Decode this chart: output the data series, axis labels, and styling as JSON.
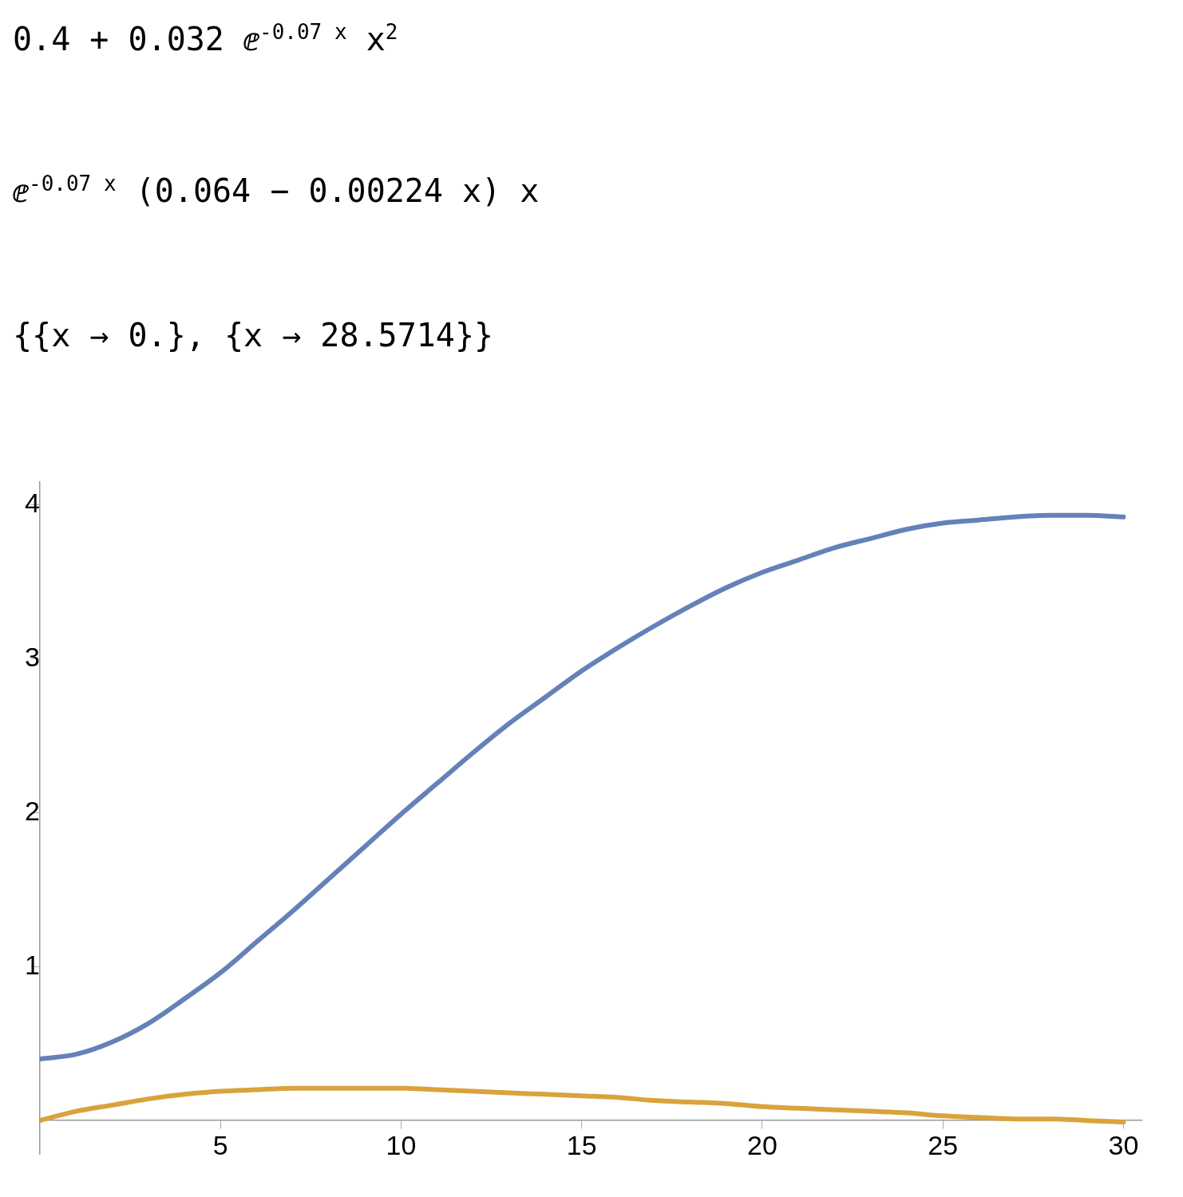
{
  "chart_data": {
    "type": "line",
    "annotations": [
      "0.4 + 0.032 ⅇ$^{-0.07 x}$ x$^{2}$",
      "ⅇ$^{-0.07 x}$ (0.064 − 0.00224 x) x",
      "{{x → 0.}, {x → 28.5714}}"
    ],
    "x": [
      0,
      1,
      2,
      3,
      4,
      5,
      6,
      7,
      8,
      9,
      10,
      11,
      12,
      13,
      14,
      15,
      16,
      17,
      18,
      19,
      20,
      21,
      22,
      23,
      24,
      25,
      26,
      27,
      28,
      29,
      30
    ],
    "series": [
      {
        "color": "#6482b8",
        "values": [
          0.4,
          0.43,
          0.51,
          0.63,
          0.79,
          0.96,
          1.16,
          1.36,
          1.57,
          1.78,
          1.99,
          2.19,
          2.39,
          2.58,
          2.75,
          2.92,
          3.07,
          3.21,
          3.34,
          3.46,
          3.56,
          3.64,
          3.72,
          3.78,
          3.84,
          3.88,
          3.9,
          3.92,
          3.93,
          3.93,
          3.92
        ]
      },
      {
        "color": "#d9a33c",
        "values": [
          0,
          0.06,
          0.1,
          0.14,
          0.17,
          0.19,
          0.2,
          0.21,
          0.21,
          0.21,
          0.21,
          0.2,
          0.19,
          0.18,
          0.17,
          0.16,
          0.15,
          0.13,
          0.12,
          0.11,
          0.09,
          0.08,
          0.07,
          0.06,
          0.05,
          0.03,
          0.02,
          0.01,
          0.01,
          0,
          -0.01
        ]
      }
    ],
    "xlim": [
      0,
      30.5
    ],
    "ylim": [
      -0.22,
      4.15
    ],
    "xticks": [
      5,
      10,
      15,
      20,
      25,
      30
    ],
    "yticks": [
      1,
      2,
      3,
      4
    ],
    "grid": false,
    "legend": false,
    "marker": "none",
    "line_style": "solid"
  }
}
